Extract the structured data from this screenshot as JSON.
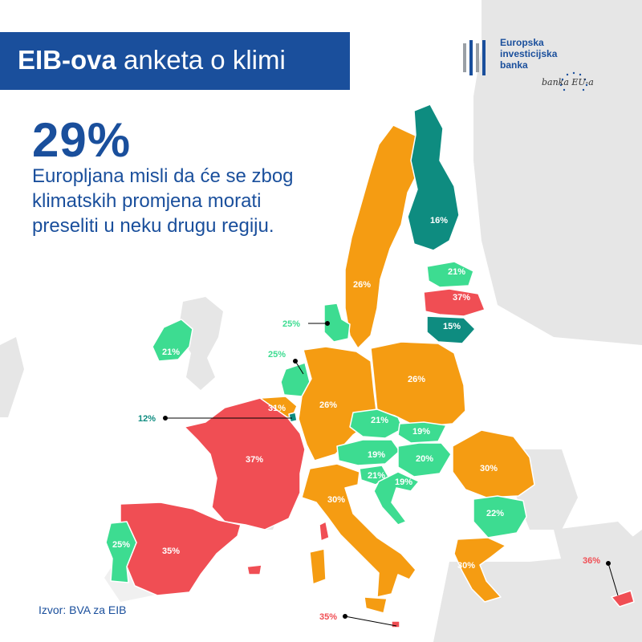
{
  "title": {
    "bold": "EIB-ova",
    "rest": "anketa o klimi"
  },
  "logo": {
    "line1": "Europska",
    "line2": "investicijska",
    "line3": "banka",
    "signature": "banka EU-a"
  },
  "headline": {
    "percent": "29%",
    "statement": "Europljana misli da će se zbog klimatskih promjena morati preseliti u neku drugu regiju."
  },
  "source": "Izvor: BVA za EIB",
  "colors": {
    "orange": "#f59c12",
    "red": "#f04e54",
    "teal": "#0e8c80",
    "green": "#3ddc91",
    "land": "#e6e6e6",
    "blue": "#1a4f9c"
  },
  "countries": {
    "ireland": "21%",
    "denmark": "25%",
    "netherlands": "25%",
    "belgium": "31%",
    "luxembourg": "12%",
    "france": "37%",
    "spain": "35%",
    "portugal": "25%",
    "germany": "26%",
    "poland": "26%",
    "sweden": "26%",
    "finland": "16%",
    "estonia": "21%",
    "latvia": "37%",
    "lithuania": "15%",
    "czechia": "21%",
    "slovakia": "19%",
    "austria": "19%",
    "hungary": "20%",
    "slovenia": "21%",
    "croatia": "19%",
    "romania": "30%",
    "bulgaria": "22%",
    "italy": "30%",
    "greece": "30%",
    "malta": "35%",
    "cyprus": "36%"
  }
}
